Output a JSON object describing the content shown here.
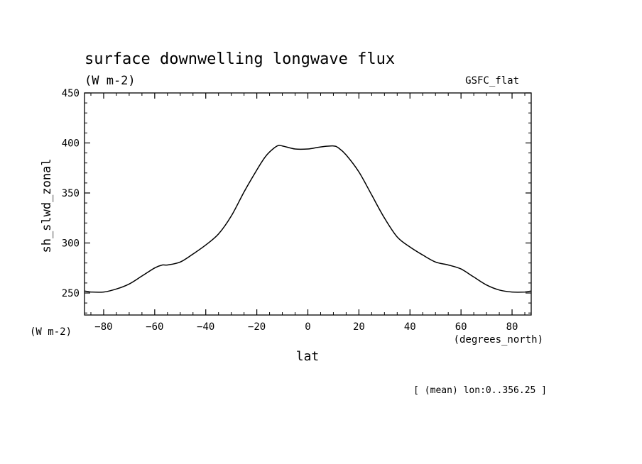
{
  "chart_data": {
    "type": "line",
    "title": "surface downwelling longwave flux",
    "units": "(W m-2)",
    "dataset_label": "GSFC_flat",
    "xlabel": "lat",
    "xunits": "(degrees_north)",
    "ylabel": "sh_slwd_zonal",
    "yunits": "(W m-2)",
    "footnote": "[ (mean) lon:0..356.25 ]",
    "xlim": [
      -87.5,
      87.5
    ],
    "ylim": [
      228,
      450
    ],
    "xticks": [
      -80,
      -60,
      -40,
      -20,
      0,
      20,
      40,
      60,
      80
    ],
    "yticks": [
      250,
      300,
      350,
      400,
      450
    ],
    "grid": false,
    "series": [
      {
        "x": [
          -87.5,
          -85,
          -80,
          -75,
          -70,
          -65,
          -60,
          -57,
          -55,
          -50,
          -45,
          -40,
          -35,
          -30,
          -25,
          -20,
          -17,
          -15,
          -12,
          -10,
          -5,
          0,
          5,
          10,
          12,
          15,
          20,
          25,
          30,
          35,
          40,
          45,
          50,
          55,
          60,
          65,
          70,
          75,
          80,
          85,
          87.5
        ],
        "y": [
          252,
          251,
          251,
          254,
          259,
          267,
          275,
          278,
          278,
          281,
          289,
          298,
          309,
          327,
          351,
          373,
          385,
          391,
          397,
          397,
          394,
          394,
          396,
          397,
          395,
          388,
          371,
          348,
          325,
          306,
          296,
          288,
          281,
          278,
          274,
          266,
          258,
          253,
          251,
          251,
          252
        ]
      }
    ]
  }
}
